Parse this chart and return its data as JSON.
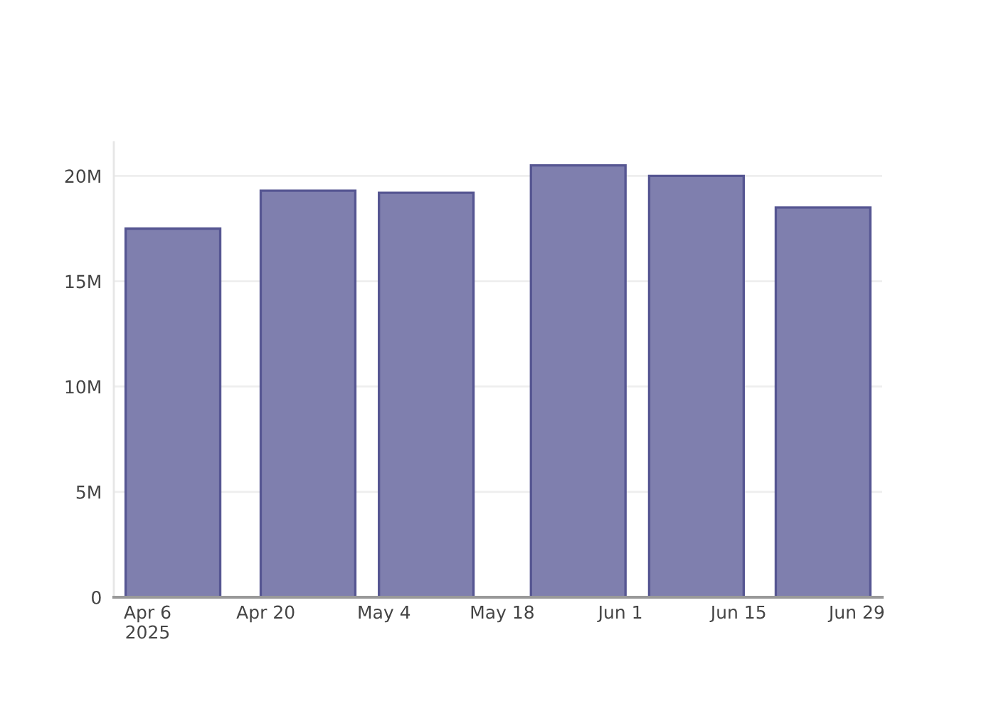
{
  "chart_data": {
    "type": "bar",
    "x": [
      "2025-04-09",
      "2025-04-25",
      "2025-05-09",
      "2025-05-27",
      "2025-06-10",
      "2025-06-25"
    ],
    "values": [
      17500000,
      19300000,
      19200000,
      20500000,
      20000000,
      18500000
    ],
    "color": "#7f7fae",
    "xlim": [
      "2025-04-02",
      "2025-07-02"
    ],
    "xticks": [
      {
        "value": "2025-04-06",
        "label": "Apr 6\n2025"
      },
      {
        "value": "2025-04-20",
        "label": "Apr 20"
      },
      {
        "value": "2025-05-04",
        "label": "May 4"
      },
      {
        "value": "2025-05-18",
        "label": "May 18"
      },
      {
        "value": "2025-06-01",
        "label": "Jun 1"
      },
      {
        "value": "2025-06-15",
        "label": "Jun 15"
      },
      {
        "value": "2025-06-29",
        "label": "Jun 29"
      }
    ],
    "ylim": [
      0,
      21600000
    ],
    "yticks": [
      0,
      {
        "value": 5000000,
        "label": "5M"
      },
      {
        "value": 10000000,
        "label": "10M"
      },
      {
        "value": 15000000,
        "label": "15M"
      },
      {
        "value": 20000000,
        "label": "20M"
      }
    ],
    "grid": "y"
  }
}
